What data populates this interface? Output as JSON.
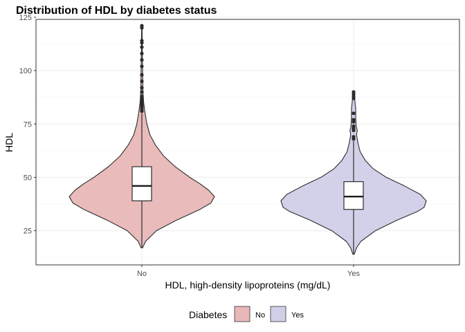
{
  "chart_data": {
    "type": "violin",
    "title": "Distribution of HDL by diabetes status",
    "xlabel": "HDL, high-density lipoproteins (mg/dL)",
    "ylabel": "HDL",
    "categories": [
      "No",
      "Yes"
    ],
    "ylim": [
      9,
      124
    ],
    "yticks": [
      25,
      50,
      75,
      100,
      125
    ],
    "grid": true,
    "legend": {
      "title": "Diabetes",
      "position": "bottom",
      "entries": [
        "No",
        "Yes"
      ]
    },
    "series": [
      {
        "name": "No",
        "color": "#e8b7b7",
        "box": {
          "min": 17,
          "q1": 39,
          "median": 46,
          "q3": 55,
          "whisker_high": 80
        },
        "outliers": [
          81,
          82,
          83,
          84,
          85,
          86,
          87,
          88,
          90,
          92,
          95,
          98,
          102,
          105,
          108,
          111,
          113,
          114,
          120,
          121
        ],
        "density": [
          [
            17,
            0.01
          ],
          [
            20,
            0.05
          ],
          [
            25,
            0.2
          ],
          [
            30,
            0.48
          ],
          [
            35,
            0.8
          ],
          [
            38,
            0.95
          ],
          [
            41,
            1.0
          ],
          [
            44,
            0.92
          ],
          [
            47,
            0.8
          ],
          [
            50,
            0.66
          ],
          [
            55,
            0.46
          ],
          [
            60,
            0.3
          ],
          [
            65,
            0.19
          ],
          [
            70,
            0.11
          ],
          [
            75,
            0.07
          ],
          [
            80,
            0.045
          ],
          [
            85,
            0.025
          ],
          [
            90,
            0.015
          ],
          [
            100,
            0.01
          ],
          [
            110,
            0.006
          ],
          [
            121,
            0.003
          ]
        ]
      },
      {
        "name": "Yes",
        "color": "#d0cfe8",
        "box": {
          "min": 14,
          "q1": 35,
          "median": 41,
          "q3": 48,
          "whisker_high": 67
        },
        "outliers": [
          68,
          69,
          72,
          73,
          74,
          76,
          77,
          80,
          87,
          88,
          89,
          90
        ],
        "density": [
          [
            14,
            0.01
          ],
          [
            17,
            0.04
          ],
          [
            20,
            0.1
          ],
          [
            25,
            0.3
          ],
          [
            30,
            0.6
          ],
          [
            34,
            0.88
          ],
          [
            36,
            0.97
          ],
          [
            39,
            1.0
          ],
          [
            42,
            0.92
          ],
          [
            46,
            0.7
          ],
          [
            50,
            0.45
          ],
          [
            54,
            0.27
          ],
          [
            58,
            0.16
          ],
          [
            62,
            0.09
          ],
          [
            66,
            0.06
          ],
          [
            68,
            0.05
          ],
          [
            70,
            0.04
          ],
          [
            72,
            0.05
          ],
          [
            74,
            0.035
          ],
          [
            78,
            0.03
          ],
          [
            82,
            0.03
          ],
          [
            85,
            0.02
          ],
          [
            88,
            0.012
          ],
          [
            90,
            0.005
          ]
        ]
      }
    ]
  }
}
